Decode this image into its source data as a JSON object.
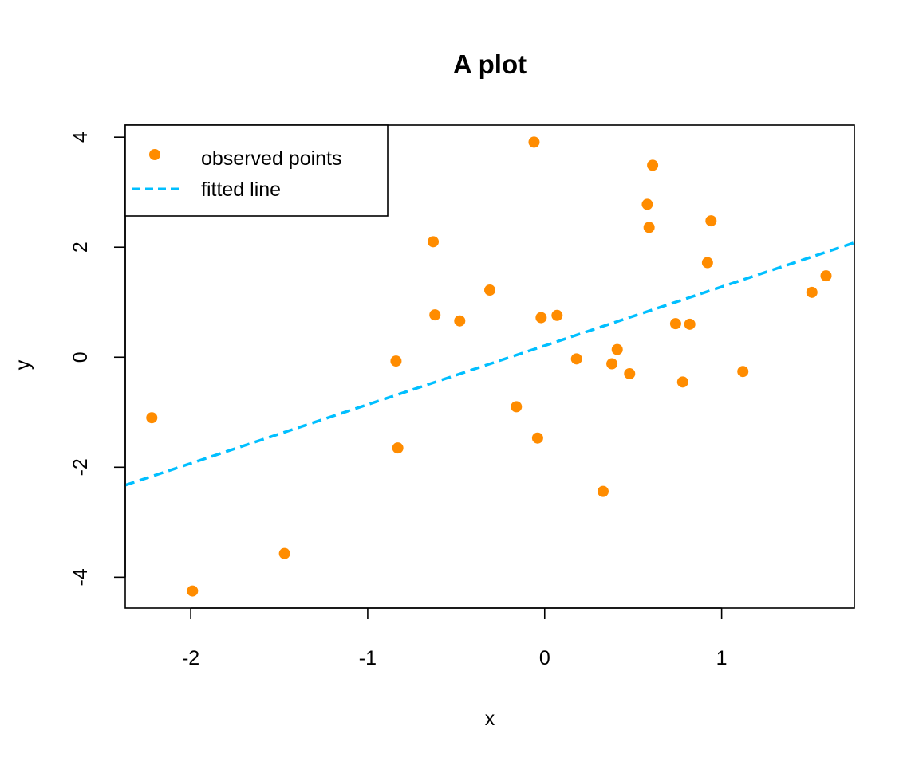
{
  "chart_data": {
    "type": "scatter",
    "title": "A plot",
    "xlabel": "x",
    "ylabel": "y",
    "xlim": [
      -2.37,
      1.75
    ],
    "ylim": [
      -4.56,
      4.22
    ],
    "x_ticks": [
      -2,
      -1,
      0,
      1
    ],
    "x_tick_labels": [
      "-2",
      "-1",
      "0",
      "1"
    ],
    "y_ticks": [
      -4,
      -2,
      0,
      2,
      4
    ],
    "y_tick_labels": [
      "-4",
      "-2",
      "0",
      "2",
      "4"
    ],
    "grid": false,
    "legend_position": "top-left",
    "series": [
      {
        "name": "observed points",
        "kind": "points",
        "color": "#ff8c00",
        "points": [
          [
            -2.22,
            -1.1
          ],
          [
            -1.99,
            -4.25
          ],
          [
            -1.47,
            -3.57
          ],
          [
            -0.84,
            -0.07
          ],
          [
            -0.83,
            -1.65
          ],
          [
            -0.63,
            2.1
          ],
          [
            -0.62,
            0.77
          ],
          [
            -0.48,
            0.66
          ],
          [
            -0.31,
            1.22
          ],
          [
            -0.16,
            -0.9
          ],
          [
            -0.06,
            3.91
          ],
          [
            -0.04,
            -1.47
          ],
          [
            -0.02,
            0.72
          ],
          [
            0.07,
            0.76
          ],
          [
            0.18,
            -0.03
          ],
          [
            0.33,
            -2.44
          ],
          [
            0.38,
            -0.12
          ],
          [
            0.41,
            0.14
          ],
          [
            0.48,
            -0.3
          ],
          [
            0.58,
            2.78
          ],
          [
            0.59,
            2.36
          ],
          [
            0.61,
            3.49
          ],
          [
            0.74,
            0.61
          ],
          [
            0.78,
            -0.45
          ],
          [
            0.82,
            0.6
          ],
          [
            0.92,
            1.72
          ],
          [
            0.94,
            2.48
          ],
          [
            1.12,
            -0.26
          ],
          [
            1.51,
            1.18
          ],
          [
            1.59,
            1.48
          ]
        ]
      },
      {
        "name": "fitted line",
        "kind": "line",
        "color": "#00bfff",
        "dash": "dashed",
        "intercept": 0.21,
        "slope": 1.07
      }
    ]
  }
}
